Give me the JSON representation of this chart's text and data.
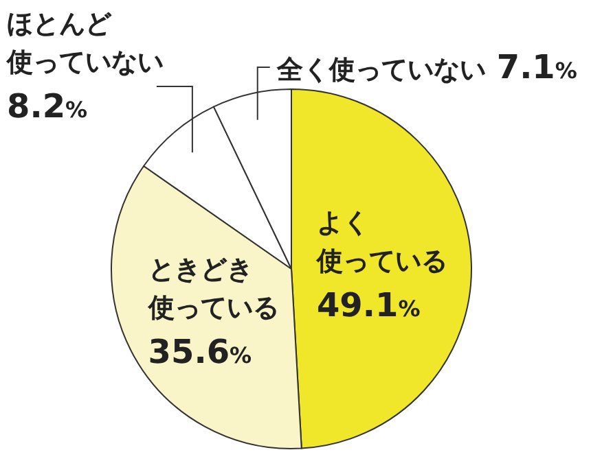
{
  "chart_data": {
    "type": "pie",
    "categories": [
      "よく使っている",
      "ときどき使っている",
      "ほとんど使っていない",
      "全く使っていない"
    ],
    "values": [
      49.1,
      35.6,
      8.2,
      7.1
    ],
    "value_labels": [
      "49.1%",
      "35.6%",
      "8.2%",
      "7.1%"
    ],
    "colors": [
      "#f0e62a",
      "#faf5c8",
      "#ffffff",
      "#ffffff"
    ]
  }
}
